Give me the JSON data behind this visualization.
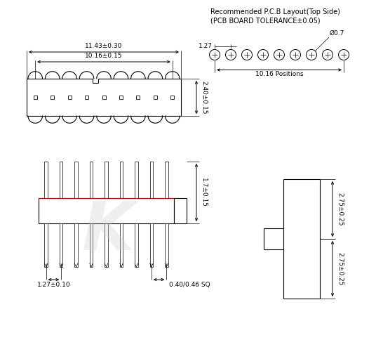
{
  "bg_color": "#ffffff",
  "line_color": "#000000",
  "red_color": "#cc0000",
  "title1": "Recommended P.C.B Layout(Top Side)",
  "title2": "(PCB BOARD TOLERANCE±0.05)",
  "dim_11_43": "11.43±0.30",
  "dim_10_16": "10.16±0.15",
  "dim_2_40": "2.40±0.15",
  "dim_1_70": "1.7±0.15",
  "dim_1_27a": "1.27±0.10",
  "dim_0_40": "0.40/0.46 SQ",
  "dim_pcb_127": "1.27",
  "dim_pcb_07": "Ø0.7",
  "dim_pcb_1016": "10.16 Positions",
  "dim_275_top": "2.75±0.25",
  "dim_275_bot": "2.75±0.25",
  "font_size_title": 7.0,
  "font_size_dim": 6.5,
  "lw": 0.8,
  "thin_lw": 0.5,
  "watermark": "K",
  "watermark_color": "#cccccc",
  "watermark_alpha": 0.3
}
